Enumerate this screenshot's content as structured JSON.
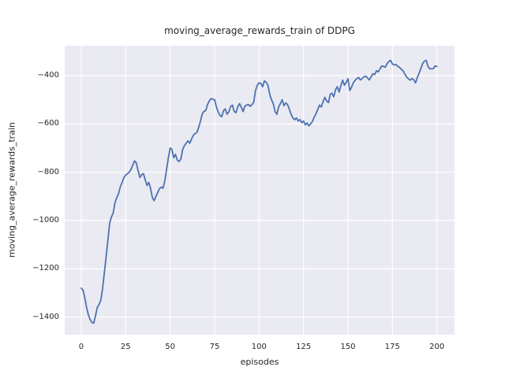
{
  "title": "moving_average_rewards_train of DDPG",
  "chart_data": {
    "type": "line",
    "title": "moving_average_rewards_train of DDPG",
    "xlabel": "episodes",
    "ylabel": "moving_average_rewards_train",
    "legend": null,
    "grid": true,
    "style": "seaborn-darkgrid",
    "plot_bg_color": "#eaeaf2",
    "grid_color": "#ffffff",
    "line_color": "#4c72b0",
    "text_color": "#262626",
    "xlim": [
      -9.3,
      209.9
    ],
    "ylim": [
      -1472.7,
      -276.1
    ],
    "x_ticks": [
      {
        "value": 0,
        "label": "0"
      },
      {
        "value": 25,
        "label": "25"
      },
      {
        "value": 50,
        "label": "50"
      },
      {
        "value": 75,
        "label": "75"
      },
      {
        "value": 100,
        "label": "100"
      },
      {
        "value": 125,
        "label": "125"
      },
      {
        "value": 150,
        "label": "150"
      },
      {
        "value": 175,
        "label": "175"
      },
      {
        "value": 200,
        "label": "200"
      }
    ],
    "y_ticks": [
      {
        "value": -400,
        "label": "−400"
      },
      {
        "value": -600,
        "label": "−600"
      },
      {
        "value": -800,
        "label": "−800"
      },
      {
        "value": -1000,
        "label": "−1000"
      },
      {
        "value": -1200,
        "label": "−1200"
      },
      {
        "value": -1400,
        "label": "−1400"
      }
    ],
    "series": [
      {
        "name": "moving_average_rewards_train",
        "x": [
          0,
          1,
          2,
          3,
          4,
          5,
          6,
          7,
          8,
          9,
          10,
          11,
          12,
          13,
          14,
          15,
          16,
          17,
          18,
          19,
          20,
          21,
          22,
          23,
          24,
          25,
          26,
          27,
          28,
          29,
          30,
          31,
          32,
          33,
          34,
          35,
          36,
          37,
          38,
          39,
          40,
          41,
          42,
          43,
          44,
          45,
          46,
          47,
          48,
          49,
          50,
          51,
          52,
          53,
          54,
          55,
          56,
          57,
          58,
          59,
          60,
          61,
          62,
          63,
          64,
          65,
          66,
          67,
          68,
          69,
          70,
          71,
          72,
          73,
          74,
          75,
          76,
          77,
          78,
          79,
          80,
          81,
          82,
          83,
          84,
          85,
          86,
          87,
          88,
          89,
          90,
          91,
          92,
          93,
          94,
          95,
          96,
          97,
          98,
          99,
          100,
          101,
          102,
          103,
          104,
          105,
          106,
          107,
          108,
          109,
          110,
          111,
          112,
          113,
          114,
          115,
          116,
          117,
          118,
          119,
          120,
          121,
          122,
          123,
          124,
          125,
          126,
          127,
          128,
          129,
          130,
          131,
          132,
          133,
          134,
          135,
          136,
          137,
          138,
          139,
          140,
          141,
          142,
          143,
          144,
          145,
          146,
          147,
          148,
          149,
          150,
          151,
          152,
          153,
          154,
          155,
          156,
          157,
          158,
          159,
          160,
          161,
          162,
          163,
          164,
          165,
          166,
          167,
          168,
          169,
          170,
          171,
          172,
          173,
          174,
          175,
          176,
          177,
          178,
          179,
          180,
          181,
          182,
          183,
          184,
          185,
          186,
          187,
          188,
          189,
          190,
          191,
          192,
          193,
          194,
          195,
          196,
          197,
          198,
          199,
          200
        ],
        "y": [
          -1280,
          -1288,
          -1320,
          -1360,
          -1390,
          -1410,
          -1422,
          -1425,
          -1395,
          -1360,
          -1348,
          -1330,
          -1282,
          -1216,
          -1150,
          -1080,
          -1010,
          -985,
          -968,
          -925,
          -905,
          -888,
          -860,
          -842,
          -822,
          -812,
          -806,
          -800,
          -788,
          -770,
          -753,
          -762,
          -795,
          -822,
          -810,
          -806,
          -832,
          -855,
          -842,
          -868,
          -905,
          -918,
          -900,
          -884,
          -868,
          -862,
          -866,
          -835,
          -788,
          -740,
          -700,
          -705,
          -740,
          -726,
          -750,
          -756,
          -746,
          -707,
          -690,
          -680,
          -670,
          -680,
          -663,
          -648,
          -640,
          -636,
          -615,
          -590,
          -560,
          -548,
          -545,
          -520,
          -505,
          -495,
          -498,
          -500,
          -530,
          -550,
          -565,
          -570,
          -545,
          -538,
          -560,
          -550,
          -528,
          -522,
          -548,
          -554,
          -530,
          -516,
          -530,
          -549,
          -527,
          -522,
          -520,
          -527,
          -520,
          -510,
          -462,
          -440,
          -430,
          -432,
          -446,
          -422,
          -428,
          -440,
          -478,
          -500,
          -516,
          -549,
          -560,
          -530,
          -516,
          -500,
          -525,
          -513,
          -520,
          -538,
          -560,
          -575,
          -583,
          -575,
          -588,
          -582,
          -595,
          -588,
          -604,
          -596,
          -608,
          -600,
          -590,
          -572,
          -558,
          -540,
          -522,
          -530,
          -508,
          -490,
          -505,
          -512,
          -478,
          -473,
          -488,
          -458,
          -446,
          -468,
          -442,
          -419,
          -440,
          -428,
          -413,
          -462,
          -448,
          -430,
          -420,
          -412,
          -408,
          -418,
          -412,
          -405,
          -402,
          -410,
          -418,
          -405,
          -392,
          -396,
          -380,
          -385,
          -372,
          -360,
          -362,
          -365,
          -350,
          -342,
          -337,
          -352,
          -356,
          -354,
          -362,
          -366,
          -374,
          -380,
          -394,
          -406,
          -413,
          -419,
          -412,
          -417,
          -430,
          -408,
          -390,
          -370,
          -350,
          -340,
          -337,
          -362,
          -372,
          -372,
          -371,
          -360,
          -362
        ]
      }
    ]
  }
}
